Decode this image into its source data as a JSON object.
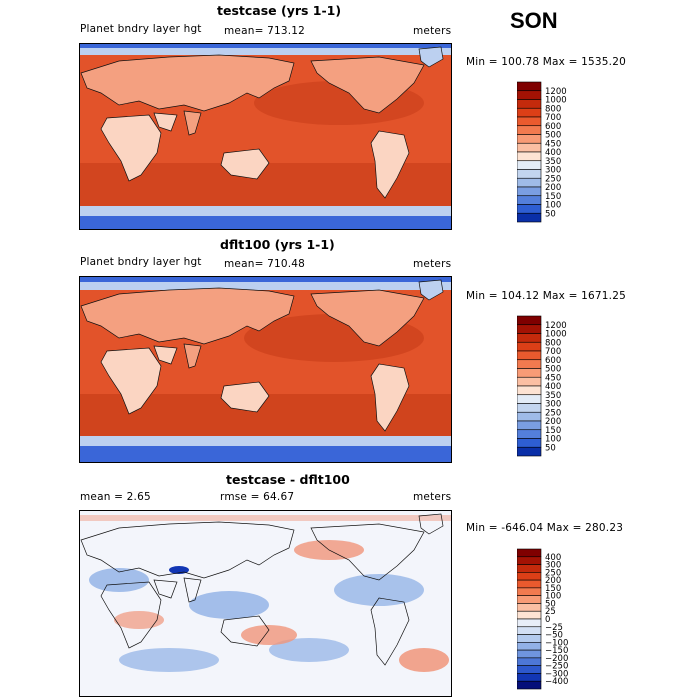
{
  "season": "SON",
  "panels": [
    {
      "title": "testcase (yrs 1-1)",
      "left_label": "Planet bndry layer hgt",
      "stat_label": "mean= 713.12",
      "units": "meters",
      "minmax": "Min = 100.78 Max = 1535.20",
      "colorbar": {
        "labels": [
          "1200",
          "1000",
          "800",
          "700",
          "600",
          "500",
          "450",
          "400",
          "350",
          "300",
          "250",
          "200",
          "150",
          "100",
          "50"
        ],
        "colors": [
          "#7f0000",
          "#a31204",
          "#c42a0c",
          "#dc3f17",
          "#ea5a2e",
          "#f27a4f",
          "#f89b76",
          "#fbbfa3",
          "#fde3d3",
          "#e3ecf7",
          "#c3d5ef",
          "#9fbbe8",
          "#7a9ee2",
          "#547fdb",
          "#2e5ed3",
          "#0a2fa8"
        ]
      }
    },
    {
      "title": "dflt100 (yrs 1-1)",
      "left_label": "Planet bndry layer hgt",
      "stat_label": "mean= 710.48",
      "units": "meters",
      "minmax": "Min = 104.12 Max = 1671.25",
      "colorbar": {
        "labels": [
          "1200",
          "1000",
          "800",
          "700",
          "600",
          "500",
          "450",
          "400",
          "350",
          "300",
          "250",
          "200",
          "150",
          "100",
          "50"
        ],
        "colors": [
          "#7f0000",
          "#a31204",
          "#c42a0c",
          "#dc3f17",
          "#ea5a2e",
          "#f27a4f",
          "#f89b76",
          "#fbbfa3",
          "#fde3d3",
          "#e3ecf7",
          "#c3d5ef",
          "#9fbbe8",
          "#7a9ee2",
          "#547fdb",
          "#2e5ed3",
          "#0a2fa8"
        ]
      }
    },
    {
      "title": "testcase - dflt100",
      "left_label": "mean =    2.65",
      "stat_label": "rmse =   64.67",
      "units": "meters",
      "minmax": "Min = -646.04 Max = 280.23",
      "colorbar": {
        "labels": [
          "400",
          "300",
          "250",
          "200",
          "150",
          "100",
          "50",
          "25",
          "0",
          "−25",
          "−50",
          "−100",
          "−150",
          "−200",
          "−250",
          "−300",
          "−400"
        ],
        "colors": [
          "#7f0000",
          "#a31204",
          "#c42a0c",
          "#dc3f17",
          "#ea5a2e",
          "#f27a4f",
          "#f89b76",
          "#fbbfa3",
          "#fde3d3",
          "#e8eef8",
          "#d3e0f4",
          "#b4cbee",
          "#92b1e7",
          "#6f95df",
          "#4d77d6",
          "#2d58cc",
          "#1236b4",
          "#050f7a"
        ]
      }
    }
  ],
  "map_colors": {
    "ocean_mid": "#e2532a",
    "ocean_deep": "#c43a16",
    "tropics": "#dc4a20",
    "land_light": "#f4a080",
    "land_pale": "#fbd5c2",
    "polar_blue": "#3a66d8",
    "polar_light": "#bcd0f0",
    "diff_bg": "#f3f5fb",
    "diff_blue": "#8fb0e6",
    "diff_red": "#f0957a"
  }
}
